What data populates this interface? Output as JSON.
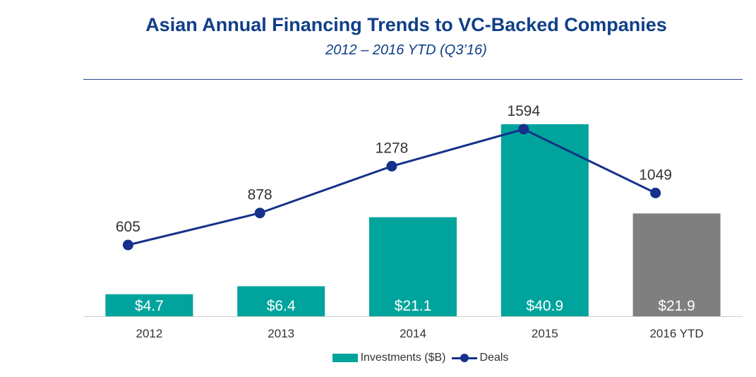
{
  "chart_data": {
    "type": "bar+line",
    "title": "Asian Annual Financing Trends to VC-Backed Companies",
    "subtitle": "2012 – 2016 YTD (Q3’16)",
    "categories": [
      "2012",
      "2013",
      "2014",
      "2015",
      "2016 YTD"
    ],
    "series": [
      {
        "name": "Investments ($B)",
        "type": "bar",
        "values": [
          4.7,
          6.4,
          21.1,
          40.9,
          21.9
        ],
        "labels": [
          "$4.7",
          "$6.4",
          "$21.1",
          "$40.9",
          "$21.9"
        ]
      },
      {
        "name": "Deals",
        "type": "line",
        "values": [
          605,
          878,
          1278,
          1594,
          1049
        ],
        "labels": [
          "605",
          "878",
          "1278",
          "1594",
          "1049"
        ]
      }
    ],
    "legend_position": "bottom",
    "colors": {
      "bar": "#00a49c",
      "bar_last": "#7f7f7f",
      "line": "#15318a",
      "title": "#0f3f87"
    }
  }
}
